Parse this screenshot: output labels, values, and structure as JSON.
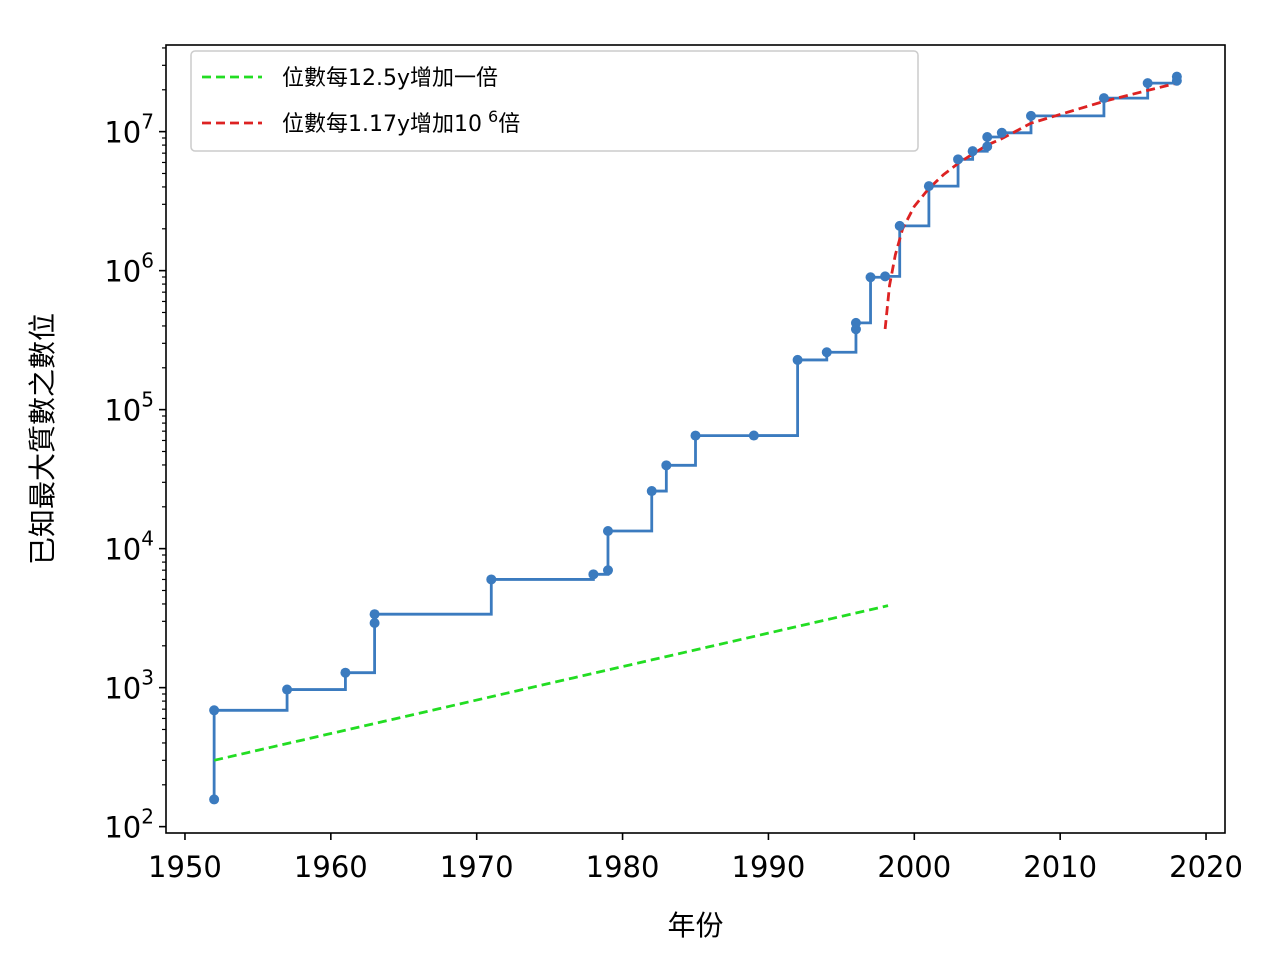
{
  "chart_data": {
    "type": "line",
    "xlabel": "年份",
    "ylabel": "已知最大質數之數位",
    "xlim": [
      1948.7,
      2021.3
    ],
    "ylim": [
      90,
      42000000
    ],
    "yscale": "log",
    "x_ticks": [
      1950,
      1960,
      1970,
      1980,
      1990,
      2000,
      2010,
      2020
    ],
    "y_ticks": [
      {
        "value": 100,
        "base": "10",
        "exp": "2"
      },
      {
        "value": 1000,
        "base": "10",
        "exp": "3"
      },
      {
        "value": 10000,
        "base": "10",
        "exp": "4"
      },
      {
        "value": 100000,
        "base": "10",
        "exp": "5"
      },
      {
        "value": 1000000,
        "base": "10",
        "exp": "6"
      },
      {
        "value": 10000000,
        "base": "10",
        "exp": "7"
      }
    ],
    "grid": false,
    "legend_position": "upper-left",
    "legend": [
      {
        "label": "位數每12.5y增加一倍",
        "color": "#22dd22",
        "style": "dashed"
      },
      {
        "label": "位數每1.17y增加10",
        "sup": "6",
        "suffix": "倍",
        "color": "#dd2222",
        "style": "dashed"
      }
    ],
    "series": [
      {
        "kind": "step-points",
        "color": "#3b7bbf",
        "points": [
          [
            1952,
            157
          ],
          [
            1952,
            687
          ],
          [
            1957,
            969
          ],
          [
            1961,
            1281
          ],
          [
            1963,
            2917
          ],
          [
            1963,
            3376
          ],
          [
            1971,
            6002
          ],
          [
            1978,
            6533
          ],
          [
            1979,
            6987
          ],
          [
            1979,
            13395
          ],
          [
            1982,
            25962
          ],
          [
            1983,
            39751
          ],
          [
            1985,
            65050
          ],
          [
            1989,
            65087
          ],
          [
            1992,
            227832
          ],
          [
            1994,
            258716
          ],
          [
            1996,
            378632
          ],
          [
            1996,
            420921
          ],
          [
            1997,
            895932
          ],
          [
            1998,
            909526
          ],
          [
            1999,
            2098960
          ],
          [
            2001,
            4053946
          ],
          [
            2003,
            6320430
          ],
          [
            2004,
            7235733
          ],
          [
            2005,
            7816230
          ],
          [
            2005,
            9152052
          ],
          [
            2006,
            9808358
          ],
          [
            2008,
            12978189
          ],
          [
            2013,
            17425170
          ],
          [
            2016,
            22338618
          ],
          [
            2018,
            23249425
          ],
          [
            2018,
            24862048
          ]
        ]
      },
      {
        "kind": "fit-exponential",
        "color": "#22dd22",
        "x0": 1952,
        "y0": 300,
        "doubling_years": 12.5,
        "x_end": 1998.2
      },
      {
        "kind": "fit-saturating",
        "color": "#dd2222",
        "x": [
          1998.0,
          1998.3,
          1998.7,
          1999.2,
          2000.0,
          2001.0,
          2002.0,
          2003.0,
          2004.0,
          2005.0,
          2006.0,
          2008.0,
          2010.0,
          2013.0,
          2016.0,
          2018.0
        ],
        "y": [
          380000,
          780000,
          1300000,
          2000000,
          2900000,
          3900000,
          4900000,
          5900000,
          6900000,
          8000000,
          8900000,
          11500000,
          13300000,
          16500000,
          19800000,
          22300000
        ]
      }
    ]
  }
}
